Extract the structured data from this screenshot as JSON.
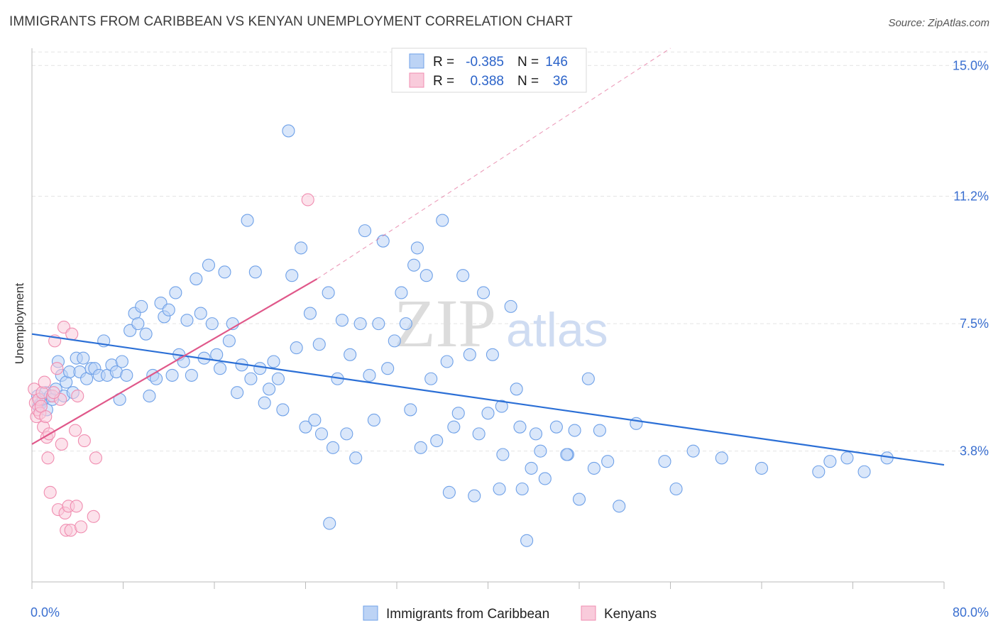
{
  "title": "IMMIGRANTS FROM CARIBBEAN VS KENYAN UNEMPLOYMENT CORRELATION CHART",
  "source": "Source: ZipAtlas.com",
  "watermark": {
    "zip": "ZIP",
    "atlas": "atlas"
  },
  "legend": {
    "rows": [
      {
        "r_label": "R =",
        "r_value": "-0.385",
        "n_label": "N =",
        "n_value": "146",
        "color": "#6fa1e8",
        "fill": "#bcd3f5"
      },
      {
        "r_label": "R =",
        "r_value": "0.388",
        "n_label": "N =",
        "n_value": "36",
        "color": "#f08db0",
        "fill": "#f9cbdb"
      }
    ]
  },
  "bottom_legend": [
    "Immigrants from Caribbean",
    "Kenyans"
  ],
  "chart_data": {
    "type": "scatter",
    "title": "IMMIGRANTS FROM CARIBBEAN VS KENYAN UNEMPLOYMENT CORRELATION CHART",
    "xlabel": "",
    "ylabel": "Unemployment",
    "xlim": [
      0,
      80
    ],
    "ylim": [
      0,
      15.5
    ],
    "x_tick_labels": [
      {
        "value": 0,
        "label": "0.0%"
      },
      {
        "value": 80,
        "label": "80.0%"
      }
    ],
    "y_tick_labels": [
      {
        "value": 3.8,
        "label": "3.8%"
      },
      {
        "value": 7.5,
        "label": "7.5%"
      },
      {
        "value": 11.2,
        "label": "11.2%"
      },
      {
        "value": 15.0,
        "label": "15.0%"
      }
    ],
    "grid": true,
    "legend_position": "top-center",
    "series": [
      {
        "name": "Immigrants from Caribbean",
        "color": "#6fa1e8",
        "fill": "#bcd3f5",
        "trend": {
          "x": [
            0,
            80
          ],
          "y": [
            7.2,
            3.4
          ],
          "style": "solid",
          "color": "#2b6fd6"
        },
        "points": [
          [
            0.5,
            5.4
          ],
          [
            0.6,
            5.1
          ],
          [
            0.8,
            5.2
          ],
          [
            1.0,
            5.3
          ],
          [
            1.2,
            5.5
          ],
          [
            1.3,
            5.0
          ],
          [
            1.6,
            5.4
          ],
          [
            1.8,
            5.3
          ],
          [
            2.1,
            5.6
          ],
          [
            2.3,
            6.4
          ],
          [
            2.6,
            6.0
          ],
          [
            2.8,
            5.4
          ],
          [
            3.0,
            5.8
          ],
          [
            3.3,
            6.1
          ],
          [
            3.6,
            5.5
          ],
          [
            3.9,
            6.5
          ],
          [
            4.2,
            6.1
          ],
          [
            4.5,
            6.5
          ],
          [
            4.8,
            5.9
          ],
          [
            5.2,
            6.2
          ],
          [
            5.5,
            6.2
          ],
          [
            5.9,
            6.0
          ],
          [
            6.3,
            7.0
          ],
          [
            6.6,
            6.0
          ],
          [
            7.0,
            6.3
          ],
          [
            7.4,
            6.1
          ],
          [
            7.7,
            5.3
          ],
          [
            7.9,
            6.4
          ],
          [
            8.3,
            6.0
          ],
          [
            8.6,
            7.3
          ],
          [
            9.0,
            7.8
          ],
          [
            9.3,
            7.5
          ],
          [
            9.6,
            8.0
          ],
          [
            10.0,
            7.2
          ],
          [
            10.3,
            5.4
          ],
          [
            10.6,
            6.0
          ],
          [
            10.9,
            5.9
          ],
          [
            11.3,
            8.1
          ],
          [
            11.6,
            7.7
          ],
          [
            12.0,
            7.9
          ],
          [
            12.3,
            6.0
          ],
          [
            12.6,
            8.4
          ],
          [
            12.9,
            6.6
          ],
          [
            13.3,
            6.4
          ],
          [
            13.6,
            7.6
          ],
          [
            14.0,
            6.0
          ],
          [
            14.4,
            8.8
          ],
          [
            14.8,
            7.8
          ],
          [
            15.1,
            6.5
          ],
          [
            15.5,
            9.2
          ],
          [
            15.8,
            7.5
          ],
          [
            16.2,
            6.6
          ],
          [
            16.5,
            6.2
          ],
          [
            16.9,
            9.0
          ],
          [
            17.3,
            7.0
          ],
          [
            17.6,
            7.5
          ],
          [
            18.0,
            5.5
          ],
          [
            18.4,
            6.3
          ],
          [
            18.9,
            10.5
          ],
          [
            19.2,
            5.9
          ],
          [
            19.6,
            9.0
          ],
          [
            20.0,
            6.2
          ],
          [
            20.4,
            5.2
          ],
          [
            20.8,
            5.6
          ],
          [
            21.2,
            6.4
          ],
          [
            21.6,
            5.9
          ],
          [
            22.0,
            5.0
          ],
          [
            22.5,
            13.1
          ],
          [
            22.8,
            8.9
          ],
          [
            23.2,
            6.8
          ],
          [
            23.6,
            9.7
          ],
          [
            24.0,
            4.5
          ],
          [
            24.4,
            7.8
          ],
          [
            24.8,
            4.7
          ],
          [
            25.2,
            6.9
          ],
          [
            25.4,
            4.3
          ],
          [
            26.0,
            8.4
          ],
          [
            26.4,
            3.9
          ],
          [
            26.8,
            5.9
          ],
          [
            27.2,
            7.6
          ],
          [
            27.6,
            4.3
          ],
          [
            27.9,
            6.6
          ],
          [
            28.4,
            3.6
          ],
          [
            28.8,
            7.5
          ],
          [
            29.2,
            10.2
          ],
          [
            29.6,
            6.0
          ],
          [
            30.0,
            4.7
          ],
          [
            30.4,
            7.5
          ],
          [
            30.8,
            9.9
          ],
          [
            31.2,
            6.2
          ],
          [
            31.8,
            7.0
          ],
          [
            32.4,
            8.4
          ],
          [
            32.8,
            7.5
          ],
          [
            33.2,
            5.0
          ],
          [
            33.5,
            9.2
          ],
          [
            33.8,
            9.7
          ],
          [
            34.1,
            3.9
          ],
          [
            34.6,
            8.9
          ],
          [
            35.0,
            5.9
          ],
          [
            35.5,
            4.1
          ],
          [
            36.0,
            10.5
          ],
          [
            36.4,
            6.4
          ],
          [
            37.0,
            4.5
          ],
          [
            37.4,
            4.9
          ],
          [
            37.8,
            8.9
          ],
          [
            38.4,
            6.6
          ],
          [
            38.8,
            2.5
          ],
          [
            39.2,
            4.3
          ],
          [
            39.6,
            8.4
          ],
          [
            40.0,
            4.9
          ],
          [
            40.4,
            6.6
          ],
          [
            41.0,
            2.7
          ],
          [
            41.3,
            3.7
          ],
          [
            42.0,
            8.0
          ],
          [
            42.5,
            5.6
          ],
          [
            42.8,
            4.5
          ],
          [
            43.0,
            2.7
          ],
          [
            43.4,
            1.2
          ],
          [
            43.8,
            3.3
          ],
          [
            44.2,
            4.3
          ],
          [
            44.6,
            3.8
          ],
          [
            45.0,
            3.0
          ],
          [
            46.0,
            4.5
          ],
          [
            47.0,
            3.7
          ],
          [
            47.6,
            4.4
          ],
          [
            48.0,
            2.4
          ],
          [
            48.8,
            5.9
          ],
          [
            49.3,
            3.3
          ],
          [
            49.8,
            4.4
          ],
          [
            50.5,
            3.5
          ],
          [
            51.5,
            2.2
          ],
          [
            53.0,
            4.6
          ],
          [
            55.5,
            3.5
          ],
          [
            56.5,
            2.7
          ],
          [
            58.0,
            3.8
          ],
          [
            60.5,
            3.6
          ],
          [
            64.0,
            3.3
          ],
          [
            69.0,
            3.2
          ],
          [
            70.0,
            3.5
          ],
          [
            71.5,
            3.6
          ],
          [
            73.0,
            3.2
          ],
          [
            75.0,
            3.6
          ],
          [
            41.2,
            5.1
          ],
          [
            36.6,
            2.6
          ],
          [
            26.1,
            1.7
          ],
          [
            46.9,
            3.7
          ]
        ]
      },
      {
        "name": "Kenyans",
        "color": "#f08db0",
        "fill": "#f9cbdb",
        "trend": {
          "x": [
            0,
            25
          ],
          "y": [
            4.0,
            8.8
          ],
          "style": "solid",
          "dash_extension_to": [
            56,
            15.5
          ],
          "color": "#e0588a"
        },
        "points": [
          [
            0.2,
            5.6
          ],
          [
            0.3,
            5.2
          ],
          [
            0.4,
            4.8
          ],
          [
            0.5,
            5.0
          ],
          [
            0.6,
            5.3
          ],
          [
            0.7,
            4.9
          ],
          [
            0.8,
            5.1
          ],
          [
            0.9,
            5.5
          ],
          [
            1.0,
            4.5
          ],
          [
            1.1,
            5.8
          ],
          [
            1.2,
            4.8
          ],
          [
            1.3,
            4.2
          ],
          [
            1.4,
            3.6
          ],
          [
            1.5,
            4.3
          ],
          [
            1.6,
            2.6
          ],
          [
            1.8,
            5.4
          ],
          [
            2.0,
            7.0
          ],
          [
            2.2,
            6.2
          ],
          [
            2.3,
            2.1
          ],
          [
            2.5,
            5.3
          ],
          [
            2.6,
            4.0
          ],
          [
            2.8,
            7.4
          ],
          [
            2.9,
            2.0
          ],
          [
            3.0,
            1.5
          ],
          [
            3.2,
            2.2
          ],
          [
            3.4,
            1.5
          ],
          [
            3.5,
            7.2
          ],
          [
            3.8,
            4.4
          ],
          [
            3.9,
            2.2
          ],
          [
            4.0,
            5.4
          ],
          [
            4.3,
            1.6
          ],
          [
            4.6,
            4.1
          ],
          [
            5.4,
            1.9
          ],
          [
            5.6,
            3.6
          ],
          [
            24.2,
            11.1
          ],
          [
            1.9,
            5.5
          ]
        ]
      }
    ]
  }
}
